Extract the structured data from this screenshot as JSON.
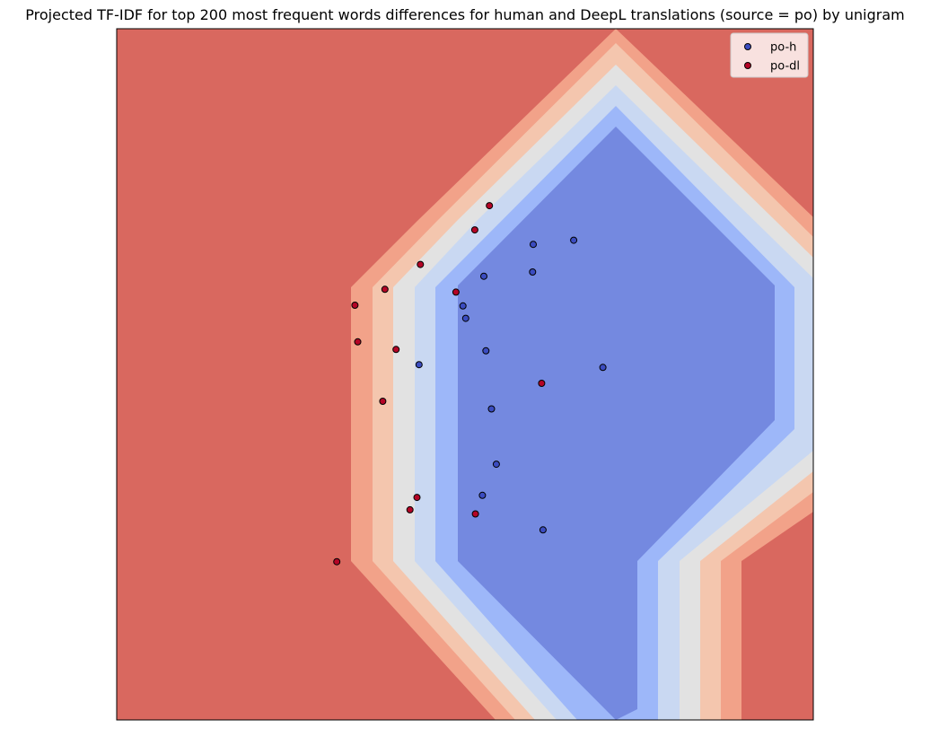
{
  "chart_data": {
    "type": "scatter",
    "title": "Projected TF-IDF for top 200 most frequent words differences for human and DeepL translations (source = po) by unigram",
    "xlabel": "",
    "ylabel": "",
    "xlim": [
      0,
      1
    ],
    "ylim": [
      0,
      1
    ],
    "grid": false,
    "axis_ticks": false,
    "legend_position": "top-right",
    "background": "decision-contour",
    "contour_colors": [
      "#7489e0",
      "#9db7f9",
      "#c9d8f2",
      "#e2e2e2",
      "#f4c6ae",
      "#f2a289",
      "#d9685f"
    ],
    "series": [
      {
        "name": "po-h",
        "color": "#3b4cc0",
        "points": [
          {
            "x": 0.598,
            "y": 0.688
          },
          {
            "x": 0.656,
            "y": 0.694
          },
          {
            "x": 0.597,
            "y": 0.648
          },
          {
            "x": 0.527,
            "y": 0.642
          },
          {
            "x": 0.497,
            "y": 0.599
          },
          {
            "x": 0.501,
            "y": 0.581
          },
          {
            "x": 0.53,
            "y": 0.534
          },
          {
            "x": 0.434,
            "y": 0.514
          },
          {
            "x": 0.698,
            "y": 0.51
          },
          {
            "x": 0.538,
            "y": 0.45
          },
          {
            "x": 0.545,
            "y": 0.37
          },
          {
            "x": 0.525,
            "y": 0.325
          },
          {
            "x": 0.612,
            "y": 0.275
          }
        ]
      },
      {
        "name": "po-dl",
        "color": "#b40426",
        "points": [
          {
            "x": 0.535,
            "y": 0.744
          },
          {
            "x": 0.514,
            "y": 0.709
          },
          {
            "x": 0.436,
            "y": 0.659
          },
          {
            "x": 0.385,
            "y": 0.623
          },
          {
            "x": 0.487,
            "y": 0.619
          },
          {
            "x": 0.342,
            "y": 0.6
          },
          {
            "x": 0.346,
            "y": 0.547
          },
          {
            "x": 0.401,
            "y": 0.536
          },
          {
            "x": 0.61,
            "y": 0.487
          },
          {
            "x": 0.382,
            "y": 0.461
          },
          {
            "x": 0.431,
            "y": 0.322
          },
          {
            "x": 0.421,
            "y": 0.304
          },
          {
            "x": 0.515,
            "y": 0.298
          },
          {
            "x": 0.316,
            "y": 0.229
          }
        ]
      }
    ]
  }
}
